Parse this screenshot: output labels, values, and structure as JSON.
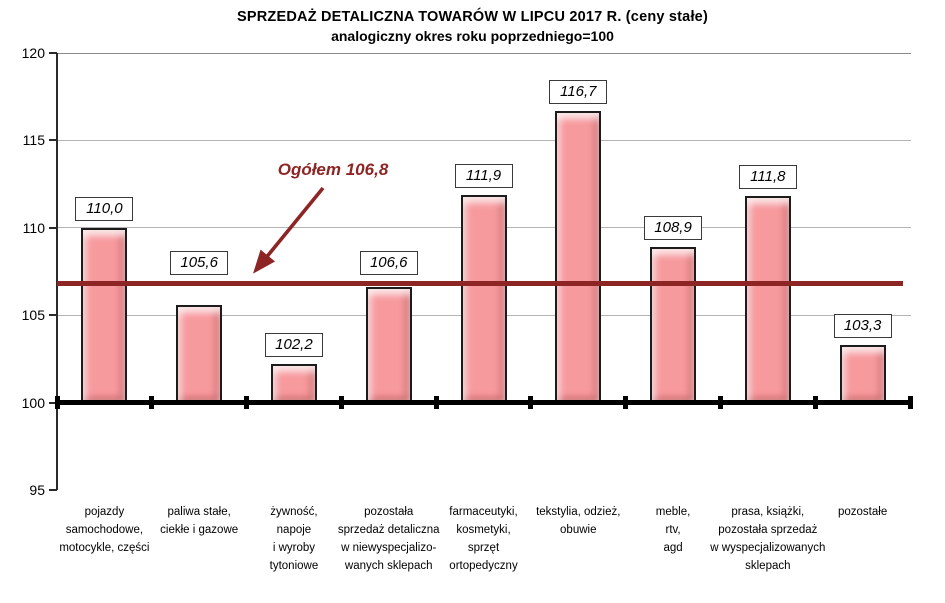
{
  "title": "SPRZEDAŻ DETALICZNA TOWARÓW W LIPCU 2017 R. (ceny stałe)",
  "subtitle": "analogiczny okres roku poprzedniego=100",
  "chart_data": {
    "type": "bar",
    "title": "SPRZEDAŻ DETALICZNA TOWARÓW W LIPCU 2017 R. (ceny stałe)",
    "subtitle": "analogiczny okres roku poprzedniego=100",
    "xlabel": "",
    "ylabel": "",
    "ylim": [
      95,
      120
    ],
    "y_ticks": [
      95,
      100,
      105,
      110,
      115,
      120
    ],
    "baseline": 100,
    "grid": "horizontal",
    "legend": "none",
    "categories": [
      [
        "pojazdy",
        "samochodowe,",
        "motocykle, części"
      ],
      [
        "paliwa stałe,",
        "ciekłe i gazowe"
      ],
      [
        "żywność,",
        "napoje",
        "i wyroby",
        "tytoniowe"
      ],
      [
        "pozostała",
        "sprzedaż detaliczna",
        "w niewyspecjalizo-",
        "wanych sklepach"
      ],
      [
        "farmaceutyki,",
        "kosmetyki,",
        "sprzęt",
        "ortopedyczny"
      ],
      [
        "tekstylia, odzież,",
        "obuwie"
      ],
      [
        "meble,",
        "rtv,",
        "agd"
      ],
      [
        "prasa, książki,",
        "pozostała sprzedaż",
        "w wyspecjalizowanych",
        "sklepach"
      ],
      [
        "pozostałe"
      ]
    ],
    "values": [
      110.0,
      105.6,
      102.2,
      106.6,
      111.9,
      116.7,
      108.9,
      111.8,
      103.3
    ],
    "value_labels": [
      "110,0",
      "105,6",
      "102,2",
      "106,6",
      "111,9",
      "116,7",
      "108,9",
      "111,8",
      "103,3"
    ],
    "reference_line": {
      "label": "Ogółem 106,8",
      "value": 106.8
    },
    "colors": {
      "bar_fill": "#F79A9E",
      "bar_border": "#1C1C1C",
      "reference_line": "#8E2525",
      "annotation_text": "#8E2525",
      "gridline": "#B3B3B3",
      "top_gridline": "#8C8C8C",
      "baseline": "#000000"
    }
  }
}
